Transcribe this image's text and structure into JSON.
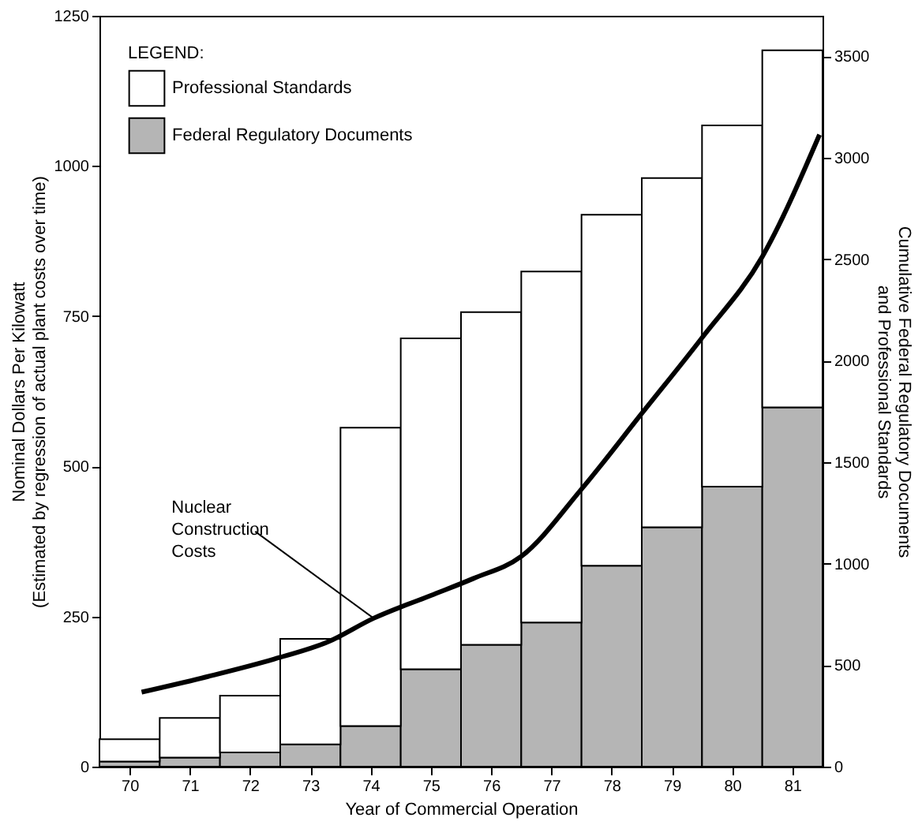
{
  "chart_data": {
    "type": "bar",
    "stacked": true,
    "x": [
      70,
      71,
      72,
      73,
      74,
      75,
      76,
      77,
      78,
      79,
      80,
      81
    ],
    "xlim": [
      69.5,
      81.5
    ],
    "xticks": [
      70,
      71,
      72,
      73,
      74,
      75,
      76,
      77,
      78,
      79,
      80,
      81
    ],
    "xlabel": "Year of Commercial Operation",
    "ylabel": "Nominal Dollars Per Kilowatt\n(Estimated by regression of actual plant costs over time)",
    "y2label": "Cumulative Federal Regulatory Documents\nand Professional Standards",
    "ylim": [
      0,
      1250
    ],
    "yticks": [
      0,
      250,
      500,
      750,
      1000,
      1250
    ],
    "y2lim": [
      0,
      3700
    ],
    "y2ticks": [
      0,
      500,
      1000,
      1500,
      2000,
      2500,
      3000,
      3500
    ],
    "legend_title": "LEGEND:",
    "legend": "top left",
    "grid": false,
    "series": [
      {
        "name": "Federal Regulatory Documents",
        "color": "#b5b5b5",
        "axis": "y2",
        "values": [
          25,
          45,
          70,
          110,
          200,
          480,
          600,
          710,
          990,
          1180,
          1380,
          1770
        ]
      },
      {
        "name": "Professional Standards",
        "color": "#ffffff",
        "axis": "y2",
        "values": [
          110,
          195,
          280,
          520,
          1470,
          1630,
          1640,
          1730,
          1730,
          1720,
          1780,
          1760
        ]
      },
      {
        "type": "line",
        "color": "#000000",
        "line_style": "solid",
        "marker": "none",
        "x": [
          70.2,
          71.3,
          72.4,
          73.3,
          74.05,
          75.0,
          75.7,
          76.5,
          77.5,
          78.5,
          79.5,
          80.5,
          81.45
        ],
        "values": [
          124,
          150,
          179,
          208,
          247,
          285,
          313,
          350,
          462,
          588,
          714,
          849,
          1052
        ]
      }
    ],
    "annotations": [
      {
        "text": "Nuclear\nConstruction\nCosts",
        "x": 74.05,
        "y": 247
      }
    ]
  }
}
